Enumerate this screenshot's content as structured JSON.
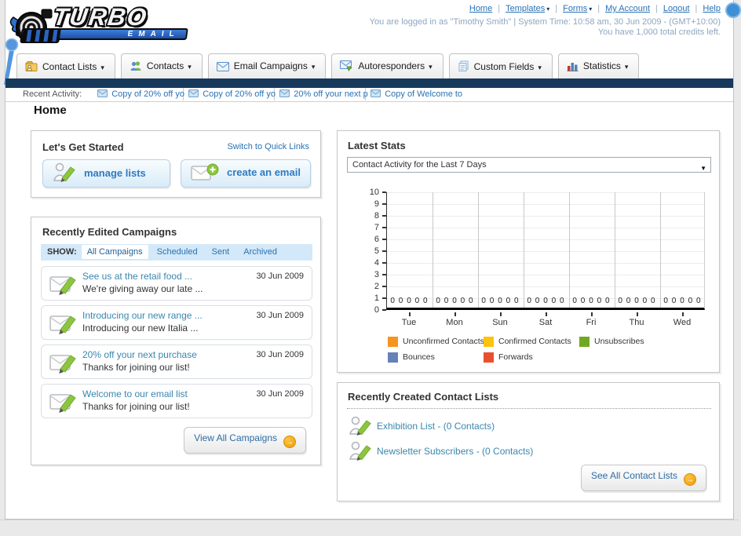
{
  "header": {
    "logo": {
      "line1": "TURBO",
      "line2": "EMAIL"
    },
    "nav_links": [
      {
        "label": "Home",
        "dropdown": false
      },
      {
        "label": "Templates",
        "dropdown": true
      },
      {
        "label": "Forms",
        "dropdown": true
      },
      {
        "label": "My Account",
        "dropdown": false
      },
      {
        "label": "Logout",
        "dropdown": false
      },
      {
        "label": "Help",
        "dropdown": false
      }
    ],
    "login_info": "You are logged in as \"Timothy Smith\" | System Time: 10:58 am, 30 Jun 2009 - (GMT+10:00)",
    "credits_info": "You have 1,000 total credits left."
  },
  "main_nav": {
    "tabs": [
      {
        "label": "Contact Lists",
        "icon": "contact-lists-icon"
      },
      {
        "label": "Contacts",
        "icon": "contacts-icon"
      },
      {
        "label": "Email Campaigns",
        "icon": "email-campaigns-icon"
      },
      {
        "label": "Autoresponders",
        "icon": "autoresponders-icon"
      },
      {
        "label": "Custom Fields",
        "icon": "custom-fields-icon"
      },
      {
        "label": "Statistics",
        "icon": "statistics-icon"
      }
    ]
  },
  "recent_activity": {
    "label": "Recent Activity:",
    "items": [
      "Copy of 20% off yo",
      "Copy of 20% off yo",
      "20% off your next p",
      "Copy of Welcome to"
    ]
  },
  "page_title": "Home",
  "get_started": {
    "title": "Let's Get Started",
    "switch_link": "Switch to Quick Links",
    "manage_label": "manage lists",
    "create_label": "create an email"
  },
  "campaigns": {
    "title": "Recently Edited Campaigns",
    "show_label": "SHOW:",
    "filters": [
      {
        "label": "All Campaigns",
        "active": true
      },
      {
        "label": "Scheduled",
        "active": false
      },
      {
        "label": "Sent",
        "active": false
      },
      {
        "label": "Archived",
        "active": false
      }
    ],
    "items": [
      {
        "title": "See us at the retail food ...",
        "subtitle": "We're giving away our late ...",
        "date": "30 Jun 2009"
      },
      {
        "title": "Introducing our new range ...",
        "subtitle": "Introducing our new Italia ...",
        "date": "30 Jun 2009"
      },
      {
        "title": "20% off your next purchase",
        "subtitle": "Thanks for joining our list!",
        "date": "30 Jun 2009"
      },
      {
        "title": "Welcome to our email list",
        "subtitle": "Thanks for joining our list!",
        "date": "30 Jun 2009"
      }
    ],
    "view_all_label": "View All Campaigns"
  },
  "stats": {
    "title": "Latest Stats",
    "dropdown_value": "Contact Activity for the Last 7 Days"
  },
  "chart_data": {
    "type": "bar",
    "title": "Contact Activity for the Last 7 Days",
    "categories": [
      "Tue",
      "Mon",
      "Sun",
      "Sat",
      "Fri",
      "Thu",
      "Wed"
    ],
    "series": [
      {
        "name": "Unconfirmed Contacts",
        "color": "#f7941e",
        "values": [
          0,
          0,
          0,
          0,
          0,
          0,
          0
        ]
      },
      {
        "name": "Confirmed Contacts",
        "color": "#fdc30d",
        "values": [
          0,
          0,
          0,
          0,
          0,
          0,
          0
        ]
      },
      {
        "name": "Unsubscribes",
        "color": "#71a823",
        "values": [
          0,
          0,
          0,
          0,
          0,
          0,
          0
        ]
      },
      {
        "name": "Bounces",
        "color": "#6680b8",
        "values": [
          0,
          0,
          0,
          0,
          0,
          0,
          0
        ]
      },
      {
        "name": "Forwards",
        "color": "#e8502d",
        "values": [
          0,
          0,
          0,
          0,
          0,
          0,
          0
        ]
      }
    ],
    "ylim": [
      0,
      10
    ],
    "y_ticks": [
      0,
      1,
      2,
      3,
      4,
      5,
      6,
      7,
      8,
      9,
      10
    ],
    "value_labels_shown": true,
    "grid": true,
    "legend_position": "bottom"
  },
  "contact_lists": {
    "title": "Recently Created Contact Lists",
    "items": [
      {
        "name": "Exhibition List",
        "detail": " - (0 Contacts)"
      },
      {
        "name": "Newsletter Subscribers",
        "detail": " - (0 Contacts)"
      }
    ],
    "see_all_label": "See All Contact Lists"
  },
  "colors": {
    "navy_bar": "#16395c",
    "link_blue": "#2a72b5",
    "accent_orange": "#ee9c0c",
    "pencil_green": "#8cc63e"
  }
}
